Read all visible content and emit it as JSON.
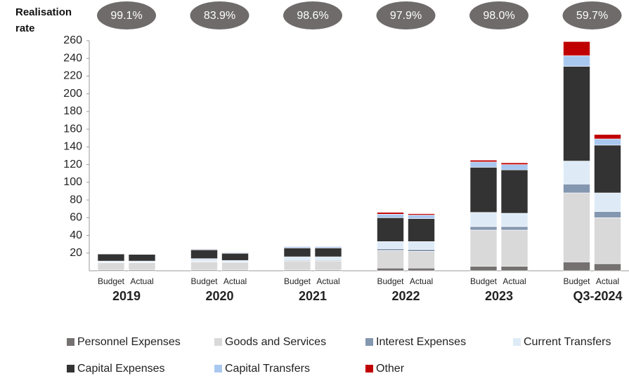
{
  "chart_data": {
    "type": "grouped-stacked-bar",
    "rate_title": "Realisation rate",
    "rates": [
      99.1,
      83.9,
      98.6,
      97.9,
      98.0,
      59.7
    ],
    "rate_labels": [
      "99.1%",
      "83.9%",
      "98.6%",
      "97.9%",
      "98.0%",
      "59.7%"
    ],
    "groups": [
      "2019",
      "2020",
      "2021",
      "2022",
      "2023",
      "Q3-2024"
    ],
    "sub_categories": [
      "Budget",
      "Actual"
    ],
    "ylim": [
      0,
      260
    ],
    "yticks": [
      20,
      40,
      60,
      80,
      100,
      120,
      140,
      160,
      180,
      200,
      220,
      240,
      260
    ],
    "series": [
      {
        "name": "Personnel Expenses",
        "color": "#757171",
        "values": [
          1,
          1,
          1,
          1,
          1,
          1,
          3,
          3,
          5,
          5,
          10,
          8
        ]
      },
      {
        "name": "Goods and Services",
        "color": "#d9d9d9",
        "values": [
          8,
          8,
          9,
          8,
          10,
          10,
          20,
          19,
          41,
          41,
          78,
          52
        ]
      },
      {
        "name": "Interest Expenses",
        "color": "#8497b0",
        "values": [
          0.5,
          0.5,
          0.7,
          0.7,
          0.8,
          0.8,
          2,
          2,
          4,
          4,
          10,
          7
        ]
      },
      {
        "name": "Current Transfers",
        "color": "#deebf7",
        "values": [
          1.5,
          1.5,
          3,
          2,
          4,
          4,
          8,
          9,
          16,
          15,
          26,
          21
        ]
      },
      {
        "name": "Capital Expenses",
        "color": "#333333",
        "values": [
          8,
          7.5,
          10,
          8,
          10,
          10,
          27,
          26,
          51,
          49,
          107,
          54
        ]
      },
      {
        "name": "Capital Transfers",
        "color": "#a9c8f0",
        "values": [
          0.5,
          0.5,
          0.8,
          0.8,
          1.5,
          1.5,
          4,
          4,
          6,
          6,
          12,
          7
        ]
      },
      {
        "name": "Other",
        "color": "#c00000",
        "values": [
          0.3,
          0.2,
          0.5,
          0.5,
          0.5,
          0.5,
          2,
          1.5,
          2,
          2,
          16,
          5
        ]
      }
    ]
  }
}
